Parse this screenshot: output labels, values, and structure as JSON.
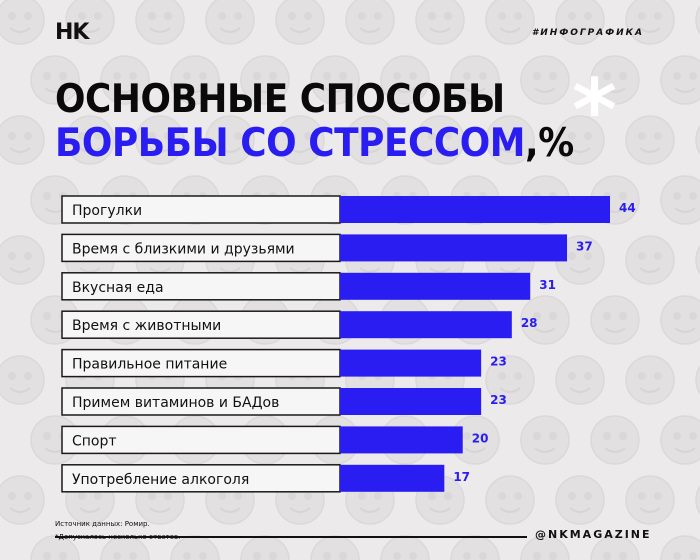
{
  "header": {
    "logo": "НK",
    "tag": "#ИНФОГРАФИКА"
  },
  "title": {
    "line1": "ОСНОВНЫЕ СПОСОБЫ",
    "line2_main": "БОРЬБЫ СО СТРЕССОМ",
    "line2_suffix": ",%",
    "asterisk": "*"
  },
  "colors": {
    "bar": "#2a1df2",
    "value": "#2a1df2",
    "background": "#eceaea"
  },
  "chart_data": {
    "type": "bar",
    "orientation": "horizontal",
    "title": "Основные способы борьбы со стрессом, %",
    "xlabel": "",
    "ylabel": "",
    "xlim": [
      0,
      44
    ],
    "categories": [
      "Прогулки",
      "Время с близкими и друзьями",
      "Вкусная еда",
      "Время с животными",
      "Правильное питание",
      "Примем витаминов и БАДов",
      "Спорт",
      "Употребление алкоголя"
    ],
    "values": [
      44,
      37,
      31,
      28,
      23,
      23,
      20,
      17
    ]
  },
  "footer": {
    "source": "Источник данных: Ромир.",
    "note": "*Допускалось несколько ответов.",
    "handle": "@NKMAGAZINE"
  }
}
